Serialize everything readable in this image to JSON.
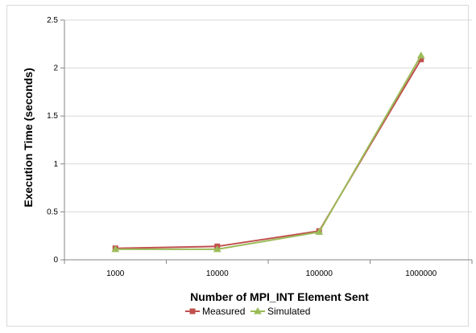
{
  "chart_data": {
    "type": "line",
    "categories": [
      "1000",
      "10000",
      "100000",
      "1000000"
    ],
    "series": [
      {
        "name": "Measured",
        "values": [
          0.12,
          0.14,
          0.3,
          2.09
        ],
        "color": "#c0504d",
        "marker": "square"
      },
      {
        "name": "Simulated",
        "values": [
          0.11,
          0.11,
          0.29,
          2.13
        ],
        "color": "#9bbb59",
        "marker": "triangle"
      }
    ],
    "title": "",
    "xlabel": "Number of MPI_INT Element Sent",
    "ylabel": "Execution Time (seconds)",
    "ylim": [
      0,
      2.5
    ],
    "yticks": [
      "0",
      "0.5",
      "1",
      "1.5",
      "2",
      "2.5"
    ],
    "grid": true,
    "legend_position": "bottom"
  }
}
